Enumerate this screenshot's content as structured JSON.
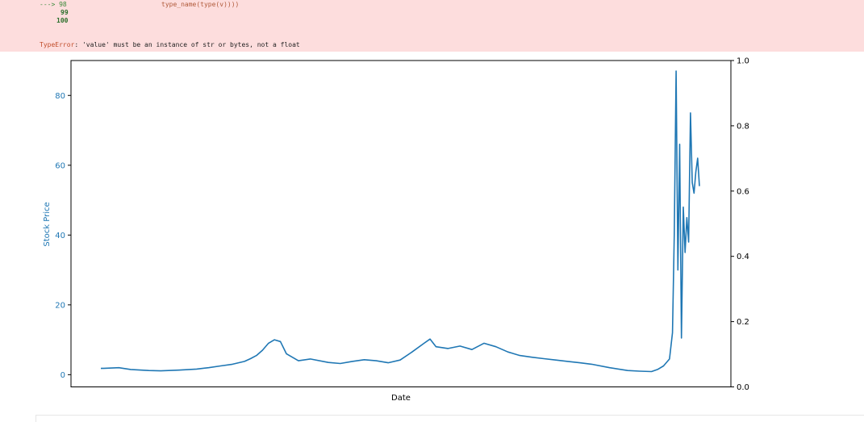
{
  "traceback": {
    "arrow_line": "---> 98",
    "arrow_code": "type_name(type(v))))",
    "line_99": "99",
    "line_100": "100",
    "error_type": "TypeError",
    "error_message": ": 'value' must be an instance of str or bytes, not a float"
  },
  "colors": {
    "error_bg": "#fddddd",
    "series": "#1f77b4",
    "axis": "#000000"
  },
  "chart_data": {
    "type": "line",
    "title": "",
    "xlabel": "Date",
    "ylabel": "Stock Price",
    "ylabel_color": "#1f77b4",
    "ylim": [
      -3.5,
      90
    ],
    "yticks": [
      0,
      20,
      40,
      60,
      80
    ],
    "y2lim": [
      0.0,
      1.0
    ],
    "y2ticks": [
      "0.0",
      "0.2",
      "0.4",
      "0.6",
      "0.8",
      "1.0"
    ],
    "x_tick_labels": [],
    "grid": false,
    "legend": "none",
    "series": [
      {
        "x": [
          0,
          0.03,
          0.05,
          0.08,
          0.1,
          0.13,
          0.16,
          0.18,
          0.2,
          0.22,
          0.24,
          0.25,
          0.26,
          0.27,
          0.28,
          0.29,
          0.3,
          0.31,
          0.33,
          0.35,
          0.38,
          0.4,
          0.42,
          0.44,
          0.46,
          0.48,
          0.5,
          0.52,
          0.54,
          0.55,
          0.56,
          0.58,
          0.6,
          0.62,
          0.64,
          0.66,
          0.68,
          0.7,
          0.72,
          0.74,
          0.76,
          0.78,
          0.8,
          0.82,
          0.85,
          0.88,
          0.9,
          0.92,
          0.93,
          0.94,
          0.95,
          0.955,
          0.958,
          0.961,
          0.964,
          0.967,
          0.97,
          0.973,
          0.976,
          0.979,
          0.982,
          0.985,
          0.988,
          0.991,
          0.994,
          0.997,
          1.0
        ],
        "y": [
          1.8,
          2.0,
          1.5,
          1.2,
          1.1,
          1.3,
          1.6,
          2.0,
          2.5,
          3.0,
          3.8,
          4.6,
          5.5,
          7.0,
          9.0,
          10.0,
          9.5,
          6.0,
          4.0,
          4.5,
          3.5,
          3.2,
          3.8,
          4.3,
          4.0,
          3.4,
          4.2,
          6.5,
          9.0,
          10.2,
          8.0,
          7.5,
          8.2,
          7.2,
          9.0,
          8.0,
          6.5,
          5.5,
          5.0,
          4.6,
          4.2,
          3.8,
          3.4,
          3.0,
          2.0,
          1.2,
          1.0,
          0.9,
          1.5,
          2.5,
          4.5,
          12.0,
          40.0,
          87.0,
          30.0,
          66.0,
          10.5,
          48.0,
          35.0,
          45.0,
          38.0,
          75.0,
          55.0,
          52.0,
          58.0,
          62.0,
          54.0
        ]
      }
    ]
  }
}
